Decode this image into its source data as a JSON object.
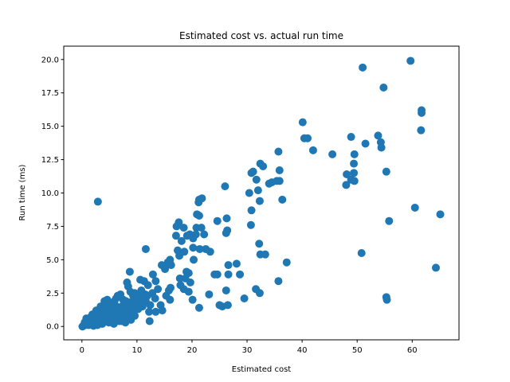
{
  "chart_data": {
    "type": "scatter",
    "title": "Estimated cost vs. actual run time",
    "xlabel": "Estimated cost",
    "ylabel": "Run time (ms)",
    "xlim": [
      -3.3,
      68.5
    ],
    "ylim": [
      -1.0,
      21.0
    ],
    "xticks": [
      0,
      10,
      20,
      30,
      40,
      50,
      60
    ],
    "xtick_labels": [
      "0",
      "10",
      "20",
      "30",
      "40",
      "50",
      "60"
    ],
    "yticks": [
      0,
      2.5,
      5,
      7.5,
      10,
      12.5,
      15,
      17.5,
      20
    ],
    "ytick_labels": [
      "0.0",
      "2.5",
      "5.0",
      "7.5",
      "10.0",
      "12.5",
      "15.0",
      "17.5",
      "20.0"
    ],
    "color": "#1f77b4",
    "grid": false,
    "points": [
      [
        59.7,
        19.9
      ],
      [
        51,
        19.4
      ],
      [
        54.8,
        17.9
      ],
      [
        61.7,
        16.2
      ],
      [
        61.7,
        16
      ],
      [
        61.6,
        14.7
      ],
      [
        40.1,
        15.3
      ],
      [
        40.4,
        14.1
      ],
      [
        41,
        14.1
      ],
      [
        42,
        13.2
      ],
      [
        45.5,
        12.9
      ],
      [
        48.9,
        14.2
      ],
      [
        49.5,
        12.9
      ],
      [
        51.5,
        13.7
      ],
      [
        53.8,
        14.3
      ],
      [
        54.3,
        13.8
      ],
      [
        54.4,
        13.4
      ],
      [
        49.4,
        12.2
      ],
      [
        49.4,
        11.5
      ],
      [
        48.1,
        11.4
      ],
      [
        48.9,
        11
      ],
      [
        49.5,
        10.9
      ],
      [
        48,
        10.6
      ],
      [
        55.3,
        11.6
      ],
      [
        60.5,
        8.9
      ],
      [
        65.1,
        8.4
      ],
      [
        55.8,
        7.9
      ],
      [
        50.8,
        5.5
      ],
      [
        64.3,
        4.4
      ],
      [
        55.3,
        2.2
      ],
      [
        55.4,
        2
      ],
      [
        35.7,
        13.1
      ],
      [
        32.4,
        12.2
      ],
      [
        32.9,
        12
      ],
      [
        30.8,
        11.5
      ],
      [
        31.1,
        11.6
      ],
      [
        34,
        10.7
      ],
      [
        34.5,
        10.8
      ],
      [
        35.4,
        10.9
      ],
      [
        35.9,
        10.9
      ],
      [
        35.9,
        11.7
      ],
      [
        31.7,
        11
      ],
      [
        32,
        10.2
      ],
      [
        30.4,
        10
      ],
      [
        32.3,
        9.4
      ],
      [
        36.4,
        9.5
      ],
      [
        26,
        10.5
      ],
      [
        30.8,
        8.7
      ],
      [
        26.3,
        8.1
      ],
      [
        24.6,
        7.9
      ],
      [
        30.7,
        7.6
      ],
      [
        26.4,
        7.2
      ],
      [
        26.2,
        7
      ],
      [
        32.2,
        6.2
      ],
      [
        32.4,
        5.4
      ],
      [
        33.3,
        5.4
      ],
      [
        37.2,
        4.8
      ],
      [
        35.7,
        3.4
      ],
      [
        26.6,
        4.6
      ],
      [
        28.1,
        4.7
      ],
      [
        26.6,
        3.9
      ],
      [
        28.7,
        3.9
      ],
      [
        24.1,
        3.9
      ],
      [
        24.6,
        3.9
      ],
      [
        31.6,
        2.8
      ],
      [
        32.3,
        2.5
      ],
      [
        26.2,
        2.7
      ],
      [
        29.5,
        2.1
      ],
      [
        25,
        1.6
      ],
      [
        25.5,
        1.5
      ],
      [
        26.5,
        1.6
      ],
      [
        21.8,
        9.6
      ],
      [
        21.2,
        9.3
      ],
      [
        21.3,
        9.5
      ],
      [
        20.9,
        8.4
      ],
      [
        21.3,
        8.3
      ],
      [
        17.6,
        7.8
      ],
      [
        17.2,
        7.5
      ],
      [
        18.5,
        7.4
      ],
      [
        20.8,
        7.4
      ],
      [
        21.7,
        7.4
      ],
      [
        19.6,
        6.9
      ],
      [
        20.7,
        6.9
      ],
      [
        19.1,
        6.8
      ],
      [
        22.2,
        6.9
      ],
      [
        17.1,
        6.8
      ],
      [
        18.1,
        6.4
      ],
      [
        20.2,
        6.6
      ],
      [
        20.2,
        5.9
      ],
      [
        21.4,
        5.8
      ],
      [
        22.5,
        5.8
      ],
      [
        23.3,
        5.6
      ],
      [
        18.6,
        5.6
      ],
      [
        17.4,
        5.7
      ],
      [
        17.7,
        5.3
      ],
      [
        20.3,
        5
      ],
      [
        16,
        5
      ],
      [
        15.6,
        4.8
      ],
      [
        14.5,
        4.6
      ],
      [
        15.1,
        4.3
      ],
      [
        16.2,
        4.6
      ],
      [
        19,
        4.1
      ],
      [
        19.4,
        4
      ],
      [
        18.8,
        3.6
      ],
      [
        17.8,
        3.6
      ],
      [
        19.7,
        3.3
      ],
      [
        17.9,
        3.1
      ],
      [
        18.5,
        2.8
      ],
      [
        19.4,
        2.6
      ],
      [
        20.1,
        2
      ],
      [
        21.3,
        1.4
      ],
      [
        16.1,
        2.9
      ],
      [
        15.8,
        2.7
      ],
      [
        12.9,
        3.9
      ],
      [
        13.4,
        3.4
      ],
      [
        11.6,
        5.8
      ],
      [
        8.7,
        4.1
      ],
      [
        15.3,
        2.3
      ],
      [
        16,
        2
      ],
      [
        13.3,
        2.1
      ],
      [
        14.3,
        1.6
      ],
      [
        12.2,
        1.1
      ],
      [
        13.4,
        1.1
      ],
      [
        14.6,
        1.2
      ],
      [
        12.3,
        0.4
      ],
      [
        23.1,
        2.4
      ],
      [
        10.6,
        3.5
      ],
      [
        11.3,
        3.4
      ],
      [
        12,
        3.1
      ],
      [
        11.5,
        2.4
      ],
      [
        10.2,
        2.3
      ],
      [
        10.8,
        2.1
      ],
      [
        9.3,
        2.3
      ],
      [
        8.2,
        3.3
      ],
      [
        8.4,
        3
      ],
      [
        6.5,
        2.3
      ],
      [
        7.5,
        2
      ],
      [
        2.9,
        9.35
      ],
      [
        0.1,
        0
      ],
      [
        0.3,
        0.05
      ],
      [
        0.6,
        0.1
      ],
      [
        0.9,
        0.15
      ],
      [
        1.2,
        0.1
      ],
      [
        1.5,
        0.2
      ],
      [
        1.8,
        0.3
      ],
      [
        2.1,
        0.05
      ],
      [
        2.4,
        0.4
      ],
      [
        2.7,
        0.2
      ],
      [
        3,
        0.5
      ],
      [
        3.3,
        0.3
      ],
      [
        3.6,
        0.7
      ],
      [
        3.9,
        0.4
      ],
      [
        4.2,
        0.9
      ],
      [
        4.5,
        0.6
      ],
      [
        4.8,
        1.1
      ],
      [
        5.1,
        0.8
      ],
      [
        5.4,
        1.3
      ],
      [
        5.7,
        0.5
      ],
      [
        6,
        1
      ],
      [
        6.3,
        1.5
      ],
      [
        6.6,
        0.7
      ],
      [
        6.9,
        1.2
      ],
      [
        7.2,
        0.4
      ],
      [
        7.5,
        1.6
      ],
      [
        7.8,
        0.9
      ],
      [
        8.1,
        1.4
      ],
      [
        8.4,
        0.6
      ],
      [
        8.7,
        1.8
      ],
      [
        9,
        1.1
      ],
      [
        9.3,
        1.5
      ],
      [
        9.6,
        0.8
      ],
      [
        9.9,
        1.9
      ],
      [
        10.2,
        1.3
      ],
      [
        10.5,
        1.7
      ],
      [
        11,
        1.5
      ],
      [
        4.1,
        1.9
      ],
      [
        4.6,
        2
      ],
      [
        5.2,
        1.7
      ],
      [
        3.4,
        1.5
      ],
      [
        2.6,
        1.2
      ],
      [
        1.9,
        0.9
      ],
      [
        1.4,
        0.6
      ],
      [
        1,
        0.5
      ],
      [
        2.2,
        0.8
      ],
      [
        3.1,
        1
      ],
      [
        3.8,
        1.3
      ],
      [
        5.9,
        1.9
      ],
      [
        6.2,
        2.1
      ],
      [
        7,
        2.4
      ],
      [
        8,
        1.9
      ],
      [
        8.8,
        2.6
      ],
      [
        4.4,
        1.5
      ],
      [
        5,
        1.1
      ],
      [
        3.7,
        0.2
      ],
      [
        4.9,
        0.3
      ],
      [
        5.8,
        0.2
      ],
      [
        6.8,
        0.4
      ],
      [
        7.9,
        0.3
      ],
      [
        8.9,
        0.5
      ],
      [
        2.8,
        0.1
      ],
      [
        1.6,
        0.7
      ],
      [
        0.5,
        0.3
      ],
      [
        0.8,
        0.6
      ],
      [
        9.6,
        2.5
      ],
      [
        10.8,
        2.7
      ],
      [
        11.9,
        2.3
      ],
      [
        12.8,
        2.5
      ],
      [
        13.8,
        2.8
      ],
      [
        11.6,
        1.9
      ],
      [
        12.4,
        1.6
      ],
      [
        6.5,
        0.8
      ],
      [
        7.4,
        1.1
      ],
      [
        5.5,
        0.6
      ],
      [
        3,
        0.8
      ],
      [
        4,
        0.6
      ],
      [
        2,
        0.5
      ],
      [
        1.3,
        0.3
      ]
    ]
  }
}
